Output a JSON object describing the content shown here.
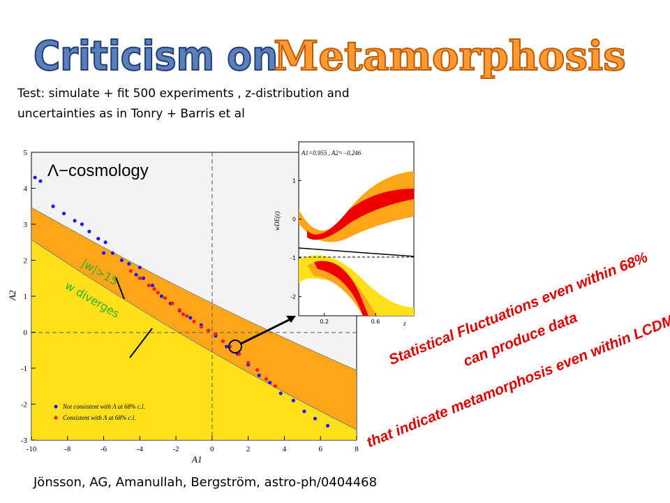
{
  "title": {
    "part1": "Criticism on",
    "part2": "Metamorphosis"
  },
  "intro": [
    "Test: simulate + fit 500 experiments , z-distribution and",
    "uncertainties as in Tonry + Barris et al"
  ],
  "chart_data": {
    "type": "scatter",
    "title": "Λ−cosmology",
    "x_label": "A1",
    "y_label": "A2",
    "annotations": [
      "|w|>15",
      "w diverges"
    ],
    "xlim": [
      -10,
      8
    ],
    "ylim": [
      -3,
      5
    ],
    "xticks": [
      -10,
      -8,
      -6,
      -4,
      -2,
      0,
      2,
      4,
      6,
      8
    ],
    "yticks": [
      -3,
      -2,
      -1,
      0,
      1,
      2,
      3,
      4,
      5
    ],
    "series": [
      {
        "name": "Not consistent with Λ at 68% c.l.",
        "color": "#1a1aff",
        "x": [
          -9.8,
          -9.5,
          -8.8,
          -8.2,
          -7.6,
          -7.2,
          -6.8,
          -6.3,
          -6.0,
          -5.9,
          -5.5,
          -5.0,
          -4.6,
          -4.2,
          -4.0,
          -3.8,
          -3.3,
          -2.8,
          -2.3,
          -1.8,
          -1.2,
          -0.6,
          0.2,
          0.8,
          1.4,
          2.0,
          2.6,
          3.2,
          3.8,
          4.5,
          5.1,
          5.7,
          6.4
        ],
        "y": [
          4.3,
          4.2,
          3.5,
          3.3,
          3.1,
          3.0,
          2.8,
          2.6,
          2.2,
          2.5,
          2.2,
          2.0,
          1.9,
          1.6,
          1.8,
          1.5,
          1.3,
          1.0,
          0.8,
          0.6,
          0.4,
          0.2,
          -0.1,
          -0.4,
          -0.6,
          -0.9,
          -1.2,
          -1.4,
          -1.7,
          -1.9,
          -2.2,
          -2.4,
          -2.6
        ]
      },
      {
        "name": "Consistent with Λ at 68% c.l.",
        "color": "#ff1a1a",
        "x": [
          -4.5,
          -4.0,
          -3.5,
          -3.2,
          -3.0,
          -2.6,
          -2.2,
          -1.8,
          -1.6,
          -1.4,
          -1.0,
          -0.6,
          -0.2,
          0.2,
          0.6,
          1.0,
          1.5,
          2.0,
          2.5,
          3.0,
          3.5
        ],
        "y": [
          1.7,
          1.5,
          1.3,
          1.2,
          1.1,
          0.95,
          0.8,
          0.62,
          0.5,
          0.45,
          0.3,
          0.15,
          0.05,
          -0.05,
          -0.25,
          -0.4,
          -0.6,
          -0.85,
          -1.05,
          -1.3,
          -1.5
        ]
      }
    ]
  },
  "inset": {
    "note": "A1=0.955 , A2=−0.246",
    "y_label": "wDE(z)",
    "x_label": "z",
    "xlim": [
      0,
      0.9
    ],
    "ylim": [
      -2.5,
      2
    ],
    "xticks": [
      0.2,
      0.6
    ],
    "yticks": [
      1,
      0,
      -1,
      -2
    ]
  },
  "callout": [
    "Statistical Fluctuations even within 68%",
    "can produce data",
    "that indicate metamorphosis even within LCDM"
  ],
  "citation": "Jönsson, AG, Amanullah, Bergström, astro-ph/0404468"
}
